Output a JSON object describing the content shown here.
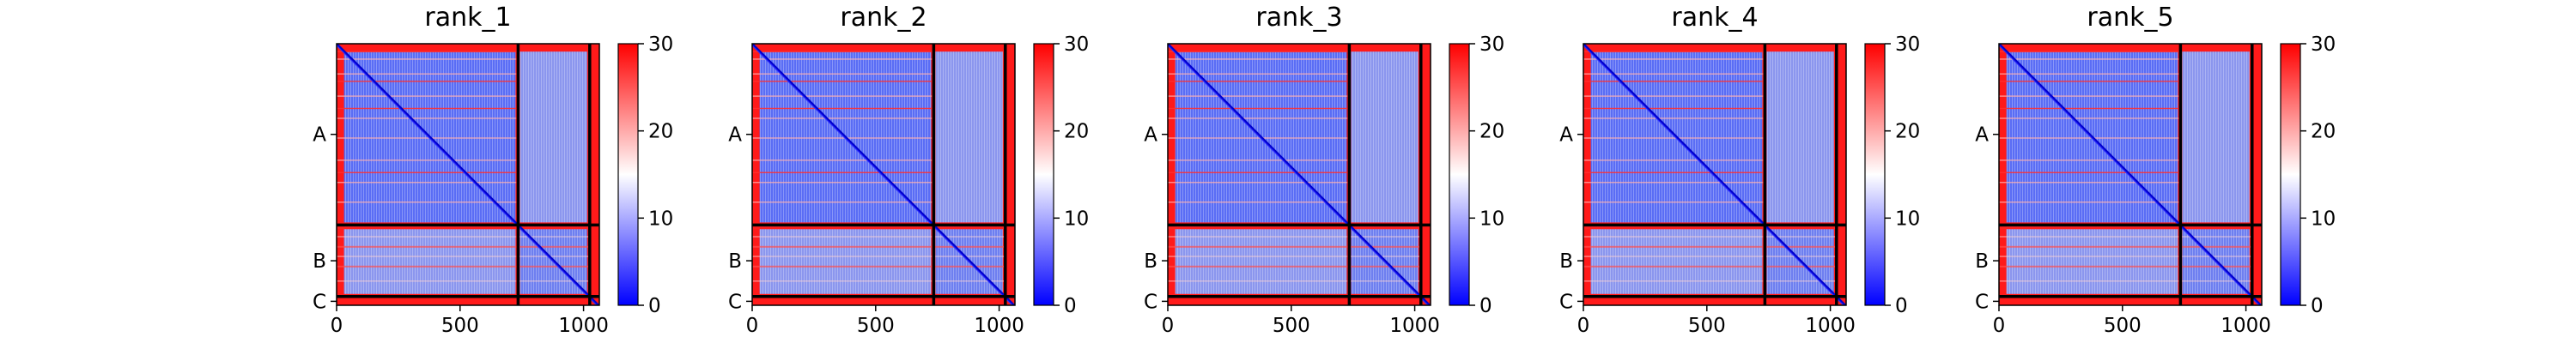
{
  "chart_data": {
    "type": "heatmap",
    "colormap": {
      "low": "#0000ff",
      "mid": "#ffffff",
      "high": "#ff0000"
    },
    "colorbar": {
      "range": [
        0,
        30
      ],
      "ticks": [
        "0",
        "10",
        "20",
        "30"
      ]
    },
    "x_axis": {
      "range": [
        0,
        1064
      ],
      "ticks": [
        0,
        500,
        1000
      ],
      "tick_labels": [
        "0",
        "500",
        "1000"
      ]
    },
    "chains": [
      {
        "label": "A",
        "start": 0,
        "end": 735
      },
      {
        "label": "B",
        "start": 735,
        "end": 1025
      },
      {
        "label": "C",
        "start": 1025,
        "end": 1064
      }
    ],
    "panels": [
      {
        "title": "rank_1"
      },
      {
        "title": "rank_2"
      },
      {
        "title": "rank_3"
      },
      {
        "title": "rank_4"
      },
      {
        "title": "rank_5"
      }
    ]
  }
}
